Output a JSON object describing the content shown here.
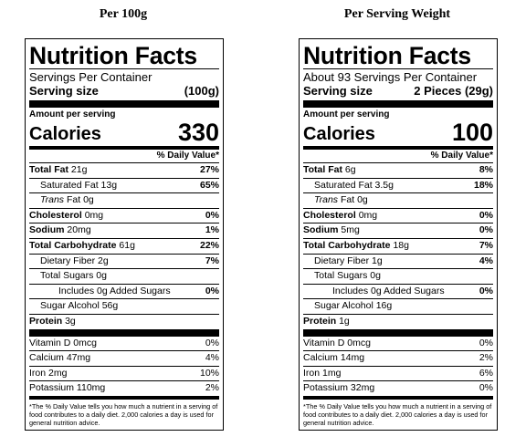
{
  "columns": [
    {
      "heading": "Per 100g",
      "title": "Nutrition Facts",
      "servings_per_container": "Servings Per Container",
      "serving_size_label": "Serving size",
      "serving_size_value": "(100g)",
      "amount_per_serving": "Amount per serving",
      "calories_label": "Calories",
      "calories_value": "330",
      "dv_header": "% Daily Value*",
      "total_fat": {
        "label": "Total Fat",
        "amount": "21g",
        "dv": "27%"
      },
      "saturated_fat": {
        "label": "Saturated Fat",
        "amount": "13g",
        "dv": "65%"
      },
      "trans_fat": {
        "label": "Trans",
        "amount": "Fat 0g",
        "dv": ""
      },
      "cholesterol": {
        "label": "Cholesterol",
        "amount": "0mg",
        "dv": "0%"
      },
      "sodium": {
        "label": "Sodium",
        "amount": "20mg",
        "dv": "1%"
      },
      "total_carbohydrate": {
        "label": "Total Carbohydrate",
        "amount": "61g",
        "dv": "22%"
      },
      "dietary_fiber": {
        "label": "Dietary Fiber",
        "amount": "2g",
        "dv": "7%"
      },
      "total_sugars": {
        "label": "Total Sugars",
        "amount": "0g",
        "dv": ""
      },
      "added_sugars": {
        "label": "Includes 0g Added Sugars",
        "amount": "",
        "dv": "0%"
      },
      "sugar_alcohol": {
        "label": "Sugar Alcohol",
        "amount": "56g",
        "dv": ""
      },
      "protein": {
        "label": "Protein",
        "amount": "3g",
        "dv": ""
      },
      "vitamin_d": {
        "label": "Vitamin D 0mcg",
        "dv": "0%"
      },
      "calcium": {
        "label": "Calcium 47mg",
        "dv": "4%"
      },
      "iron": {
        "label": "Iron 2mg",
        "dv": "10%"
      },
      "potassium": {
        "label": "Potassium 110mg",
        "dv": "2%"
      },
      "footnote": "*The % Daily Value tells you how much a nutrient in a serving of food contributes to a daily diet. 2,000 calories a day is used for general nutrition advice."
    },
    {
      "heading": "Per Serving Weight",
      "title": "Nutrition Facts",
      "servings_per_container": "About 93 Servings Per Container",
      "serving_size_label": "Serving size",
      "serving_size_value": "2 Pieces (29g)",
      "amount_per_serving": "Amount per serving",
      "calories_label": "Calories",
      "calories_value": "100",
      "dv_header": "% Daily Value*",
      "total_fat": {
        "label": "Total Fat",
        "amount": "6g",
        "dv": "8%"
      },
      "saturated_fat": {
        "label": "Saturated Fat",
        "amount": "3.5g",
        "dv": "18%"
      },
      "trans_fat": {
        "label": "Trans",
        "amount": "Fat 0g",
        "dv": ""
      },
      "cholesterol": {
        "label": "Cholesterol",
        "amount": "0mg",
        "dv": "0%"
      },
      "sodium": {
        "label": "Sodium",
        "amount": "5mg",
        "dv": "0%"
      },
      "total_carbohydrate": {
        "label": "Total Carbohydrate",
        "amount": "18g",
        "dv": "7%"
      },
      "dietary_fiber": {
        "label": "Dietary Fiber",
        "amount": "1g",
        "dv": "4%"
      },
      "total_sugars": {
        "label": "Total Sugars",
        "amount": "0g",
        "dv": ""
      },
      "added_sugars": {
        "label": "Includes 0g Added Sugars",
        "amount": "",
        "dv": "0%"
      },
      "sugar_alcohol": {
        "label": "Sugar Alcohol",
        "amount": "16g",
        "dv": ""
      },
      "protein": {
        "label": "Protein",
        "amount": "1g",
        "dv": ""
      },
      "vitamin_d": {
        "label": "Vitamin D 0mcg",
        "dv": "0%"
      },
      "calcium": {
        "label": "Calcium 14mg",
        "dv": "2%"
      },
      "iron": {
        "label": "Iron 1mg",
        "dv": "6%"
      },
      "potassium": {
        "label": "Potassium 32mg",
        "dv": "0%"
      },
      "footnote": "*The % Daily Value tells you how much a nutrient in a serving of food contributes to a daily diet. 2,000 calories a day is used for general nutrition advice."
    }
  ]
}
